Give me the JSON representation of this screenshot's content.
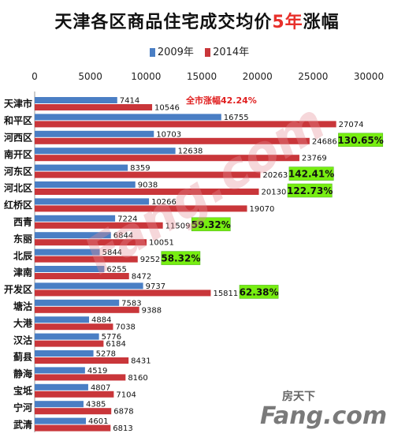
{
  "title_main": "天津各区商品住宅成交均价",
  "title_highlight": "5年",
  "title_tail": "涨幅",
  "watermark_center": "Fang.com",
  "watermark_corner": "Fang.com",
  "watermark_corner_small": "房天下",
  "colors": {
    "s2009": "#4a7ec4",
    "s2014": "#c9363a",
    "highlight": "#77ee11",
    "note": "#e02020"
  },
  "chart_data": {
    "type": "bar",
    "orientation": "horizontal",
    "xlim": [
      0,
      30000
    ],
    "xticks": [
      "0",
      "5000",
      "10000",
      "15000",
      "20000",
      "25000",
      "30000"
    ],
    "categories": [
      "天津市",
      "和平区",
      "河西区",
      "南开区",
      "河东区",
      "河北区",
      "红桥区",
      "西青",
      "东丽",
      "北辰",
      "津南",
      "开发区",
      "塘沽",
      "大港",
      "汉沽",
      "蓟县",
      "静海",
      "宝坻",
      "宁河",
      "武清"
    ],
    "series": [
      {
        "name": "2009年",
        "values": [
          7414,
          16755,
          10703,
          12638,
          8359,
          9038,
          10266,
          7224,
          6844,
          5844,
          6255,
          9737,
          7583,
          4884,
          5776,
          5278,
          4519,
          4807,
          4385,
          4601
        ]
      },
      {
        "name": "2014年",
        "values": [
          10546,
          27074,
          24686,
          23769,
          20263,
          20130,
          19070,
          11509,
          10051,
          9252,
          8472,
          15811,
          9388,
          7038,
          6184,
          8431,
          8160,
          7104,
          6878,
          6813
        ]
      }
    ],
    "annotations": [
      {
        "index": 0,
        "text": "全市涨幅42.24%",
        "highlight": false
      },
      {
        "index": 2,
        "text": "130.65%",
        "highlight": true
      },
      {
        "index": 4,
        "text": "142.41%",
        "highlight": true
      },
      {
        "index": 5,
        "text": "122.73%",
        "highlight": true
      },
      {
        "index": 7,
        "text": "59.32%",
        "highlight": true
      },
      {
        "index": 9,
        "text": "58.32%",
        "highlight": true
      },
      {
        "index": 11,
        "text": "62.38%",
        "highlight": true
      }
    ]
  }
}
